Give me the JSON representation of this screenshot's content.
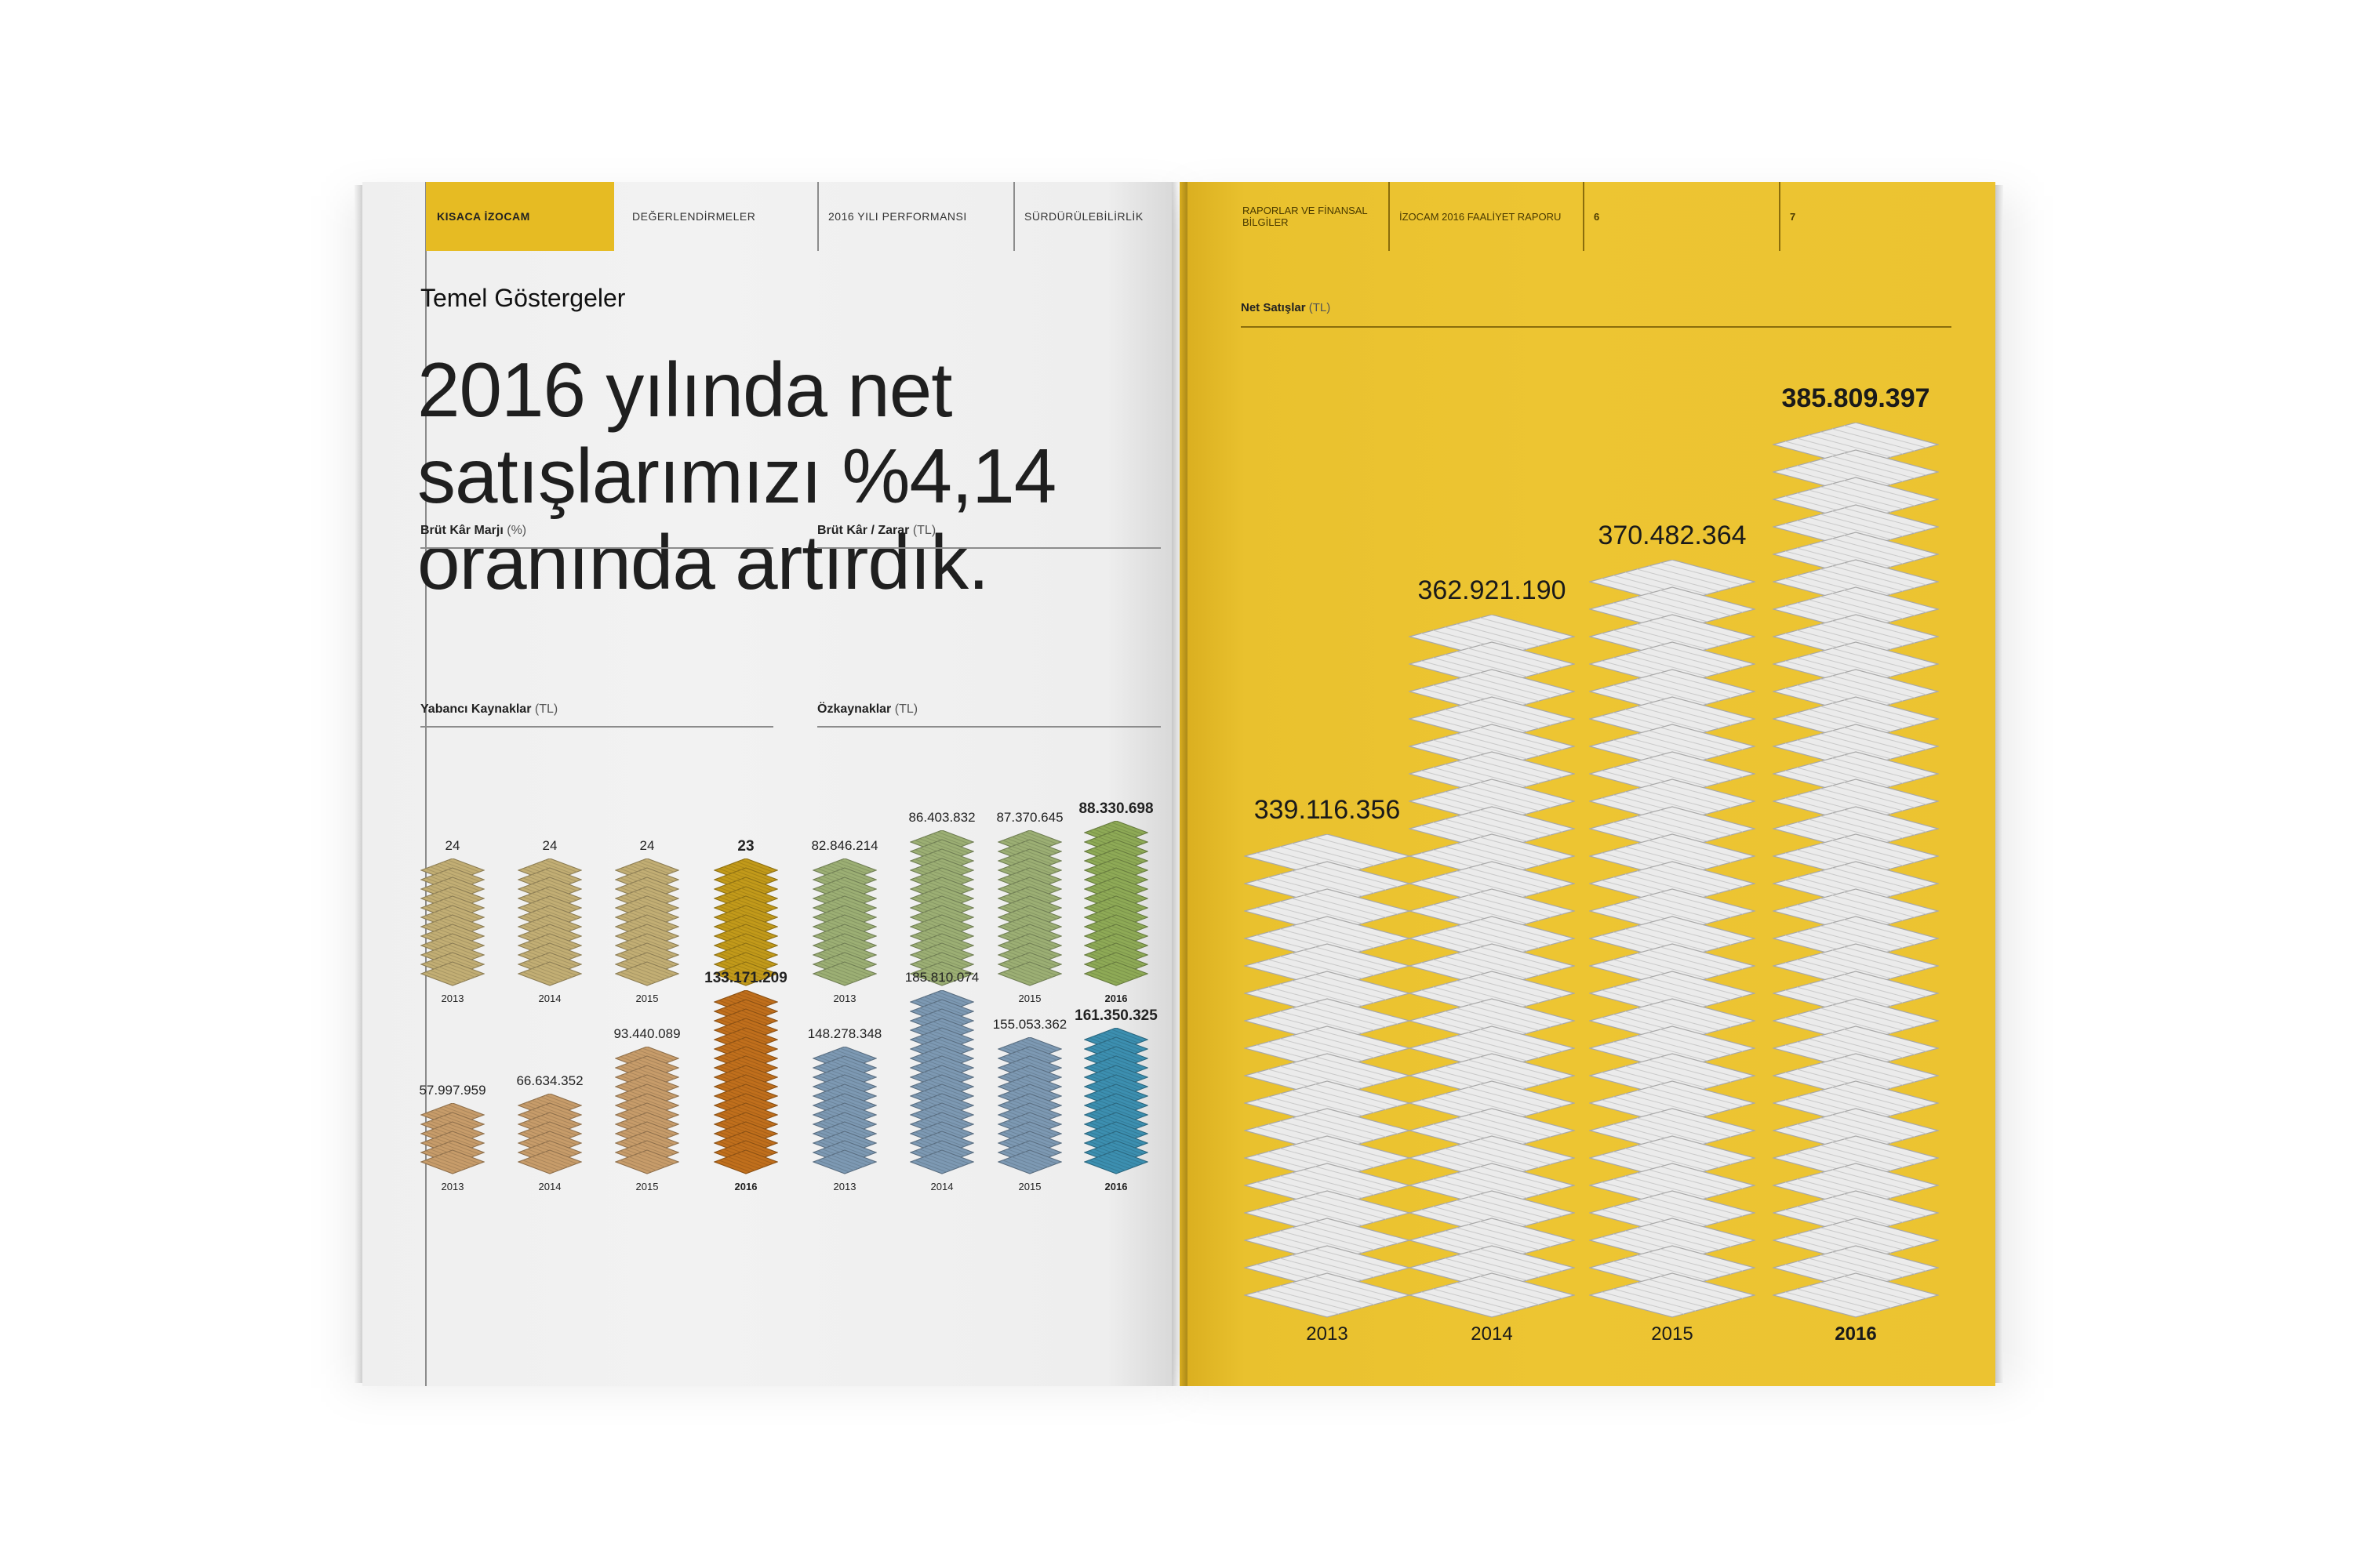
{
  "left_nav": {
    "tabs": [
      {
        "label": "KISACA İZOCAM",
        "active": true
      },
      {
        "label": "DEĞERLENDİRMELER",
        "active": false
      },
      {
        "label": "2016 YILI PERFORMANSI",
        "active": false
      },
      {
        "label": "SÜRDÜRÜLEBİLİRLİK",
        "active": false
      }
    ]
  },
  "right_nav": {
    "tabs": [
      {
        "label": "RAPORLAR VE FİNANSAL BİLGİLER"
      },
      {
        "label": "İZOCAM 2016 FAALİYET RAPORU"
      },
      {
        "label": "6"
      },
      {
        "label": "7"
      }
    ]
  },
  "section_title": "Temel Göstergeler",
  "headline": "2016 yılında net\nsatışlarımızı %4,14\noranında artırdık.",
  "colors": {
    "accent_yellow": "#e6bb23",
    "page_yellow": "#ecc331",
    "khaki": "#c2ae74",
    "khaki_highlight": "#c29a1a",
    "green": "#9caf74",
    "green_highlight": "#8eaa56",
    "tan": "#c79c6a",
    "tan_highlight": "#c06f1c",
    "blue": "#7d99b3",
    "blue_highlight": "#3c8fb0",
    "net_sales_tile": "#ebebeb"
  },
  "chart_data": [
    {
      "id": "brut_kar_marji",
      "type": "bar",
      "title": "Brüt Kâr Marjı",
      "unit": "(%)",
      "categories": [
        "2013",
        "2014",
        "2015",
        "2016"
      ],
      "values": [
        24,
        24,
        24,
        23
      ],
      "labels": [
        "24",
        "24",
        "24",
        "23"
      ],
      "highlight_index": 3
    },
    {
      "id": "brut_kar_zarar",
      "type": "bar",
      "title": "Brüt Kâr / Zarar",
      "unit": "(TL)",
      "categories": [
        "2013",
        "2014",
        "2015",
        "2016"
      ],
      "values": [
        82846214,
        86403832,
        87370645,
        88330698
      ],
      "labels": [
        "82.846.214",
        "86.403.832",
        "87.370.645",
        "88.330.698"
      ],
      "highlight_index": 3
    },
    {
      "id": "yabanci_kaynaklar",
      "type": "bar",
      "title": "Yabancı Kaynaklar",
      "unit": "(TL)",
      "categories": [
        "2013",
        "2014",
        "2015",
        "2016"
      ],
      "values": [
        57997959,
        66634352,
        93440089,
        133171209
      ],
      "labels": [
        "57.997.959",
        "66.634.352",
        "93.440.089",
        "133.171.209"
      ],
      "highlight_index": 3
    },
    {
      "id": "ozkaynaklar",
      "type": "bar",
      "title": "Özkaynaklar",
      "unit": "(TL)",
      "categories": [
        "2013",
        "2014",
        "2015",
        "2016"
      ],
      "values": [
        148278348,
        185810074,
        155053362,
        161350325
      ],
      "labels": [
        "148.278.348",
        "185.810.074",
        "155.053.362",
        "161.350.325"
      ],
      "highlight_index": 3
    },
    {
      "id": "net_satislar",
      "type": "bar",
      "title": "Net Satışlar",
      "unit": "(TL)",
      "categories": [
        "2013",
        "2014",
        "2015",
        "2016"
      ],
      "values": [
        339116356,
        362921190,
        370482364,
        385809397
      ],
      "labels": [
        "339.116.356",
        "362.921.190",
        "370.482.364",
        "385.809.397"
      ],
      "highlight_index": 3
    }
  ]
}
